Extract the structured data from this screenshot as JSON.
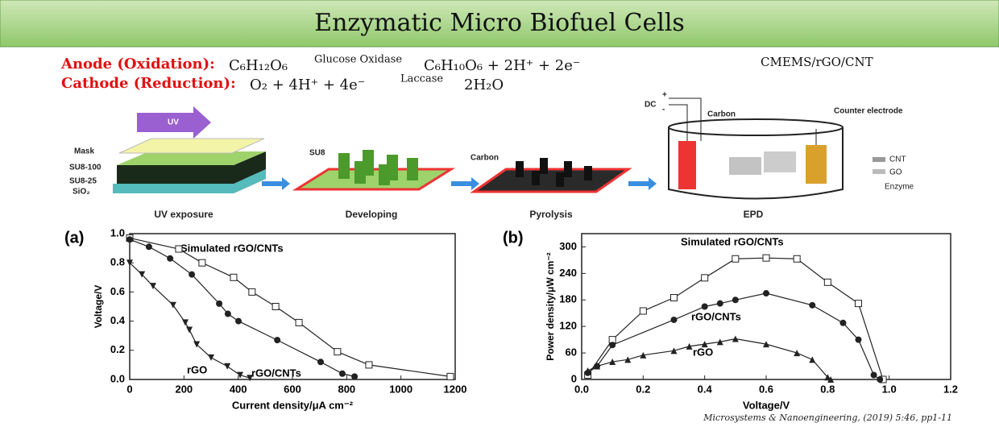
{
  "title": "Enzymatic Micro Biofuel Cells",
  "equations": {
    "anode": {
      "label": "Anode (Oxidation):",
      "reactant": "C₆H₁₂O₆",
      "enzyme": "Glucose Oxidase",
      "product": "C₆H₁₀O₆ + 2H⁺ + 2e⁻"
    },
    "cathode": {
      "label": "Cathode (Reduction):",
      "reactant": "O₂ + 4H⁺ + 4e⁻",
      "enzyme": "Laccase",
      "product": "2H₂O"
    },
    "material": "CMEMS/rGO/CNT"
  },
  "diagram": {
    "uv": "UV",
    "mask": "Mask",
    "su8_100": "SU8-100",
    "su8_25": "SU8-25",
    "sio2": "SiO₂",
    "su8": "SU8",
    "carbon": "Carbon",
    "dc": "DC",
    "plus": "+",
    "minus": "-",
    "electrode_carbon": "Carbon",
    "counter": "Counter electrode",
    "cnt": "CNT",
    "go": "GO",
    "enzyme": "Enzyme",
    "steps": [
      "UV exposure",
      "Developing",
      "Pyrolysis",
      "EPD"
    ]
  },
  "citation": "Microsystems & Nanoengineering, (2019) 5:46, pp1-11",
  "chart_data": [
    {
      "type": "line",
      "panel": "(a)",
      "xlabel": "Current density/μA cm⁻²",
      "ylabel": "Voltage/V",
      "xlim": [
        0,
        1200
      ],
      "xticks": [
        0,
        200,
        400,
        600,
        800,
        1000,
        1200
      ],
      "ylim": [
        0,
        1.0
      ],
      "yticks": [
        {
          "value": 0,
          "label": "0.0"
        },
        0.2,
        0.4,
        0.6,
        0.8,
        {
          "value": 1.0,
          "label": "1.0"
        }
      ],
      "annotations": [
        "Simulated rGO/CNTs",
        "rGO/CNTs",
        "rGO"
      ],
      "series": [
        {
          "name": "Simulated rGO/CNTs",
          "color": "#222222",
          "marker": "square",
          "x": [
            0,
            181,
            267,
            383,
            451,
            538,
            624,
            766,
            882,
            1182
          ],
          "values": [
            0.97,
            0.895,
            0.8,
            0.7,
            0.6,
            0.5,
            0.39,
            0.19,
            0.1,
            0.02
          ]
        },
        {
          "name": "rGO/CNTs",
          "color": "#222222",
          "marker": "circle",
          "x": [
            0,
            71,
            149,
            229,
            330,
            362,
            401,
            544,
            704,
            784,
            829
          ],
          "values": [
            0.96,
            0.91,
            0.83,
            0.72,
            0.52,
            0.45,
            0.4,
            0.27,
            0.12,
            0.04,
            0.02
          ]
        },
        {
          "name": "rGO",
          "color": "#222222",
          "marker": "triangle-down",
          "x": [
            0,
            45,
            86,
            160,
            205,
            220,
            247,
            300,
            360,
            407,
            443
          ],
          "values": [
            0.8,
            0.72,
            0.64,
            0.51,
            0.39,
            0.34,
            0.24,
            0.15,
            0.09,
            0.03,
            0.01
          ]
        }
      ]
    },
    {
      "type": "line",
      "panel": "(b)",
      "xlabel": "Voltage/V",
      "ylabel": "Power density/μW cm⁻²",
      "xlim": [
        0,
        1.2
      ],
      "xticks": [
        {
          "value": 0,
          "label": "0.0"
        },
        0.2,
        0.4,
        0.6,
        0.8,
        {
          "value": 1.0,
          "label": "1.0"
        },
        1.2
      ],
      "ylim": [
        0,
        330
      ],
      "yticks": [
        0,
        60,
        120,
        180,
        240,
        300
      ],
      "annotations": [
        "Simulated rGO/CNTs",
        "rGO/CNTs",
        "rGO"
      ],
      "series": [
        {
          "name": "Simulated rGO/CNTs",
          "color": "#222222",
          "marker": "square",
          "x": [
            0.02,
            0.1,
            0.2,
            0.3,
            0.4,
            0.5,
            0.6,
            0.7,
            0.8,
            0.9,
            0.98
          ],
          "values": [
            10,
            90,
            155,
            185,
            230,
            273,
            275,
            273,
            220,
            172,
            0
          ]
        },
        {
          "name": "rGO/CNTs",
          "color": "#222222",
          "marker": "circle",
          "x": [
            0.02,
            0.05,
            0.1,
            0.3,
            0.4,
            0.45,
            0.5,
            0.6,
            0.75,
            0.85,
            0.9,
            0.95,
            0.97
          ],
          "values": [
            15,
            30,
            78,
            135,
            165,
            172,
            180,
            195,
            168,
            128,
            90,
            10,
            0
          ]
        },
        {
          "name": "rGO",
          "color": "#222222",
          "marker": "triangle-up",
          "x": [
            0.02,
            0.05,
            0.1,
            0.15,
            0.2,
            0.3,
            0.35,
            0.4,
            0.45,
            0.5,
            0.6,
            0.7,
            0.75,
            0.8,
            0.81
          ],
          "values": [
            20,
            30,
            40,
            45,
            55,
            65,
            75,
            80,
            85,
            92,
            80,
            60,
            45,
            5,
            0
          ]
        }
      ]
    }
  ]
}
